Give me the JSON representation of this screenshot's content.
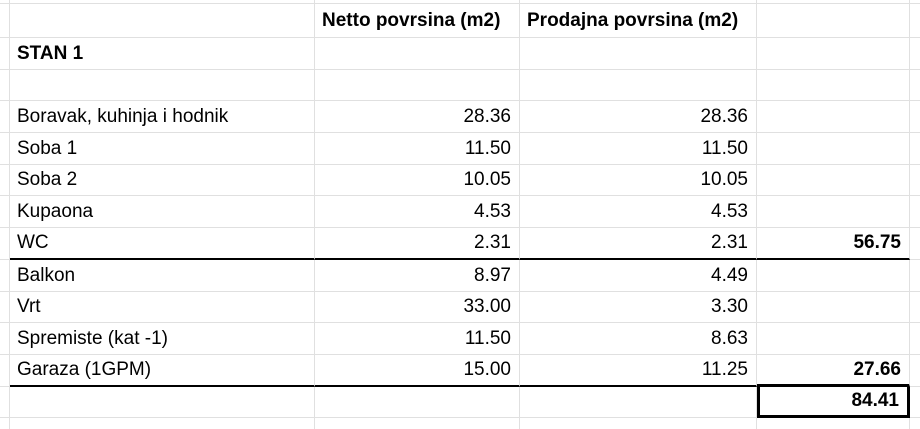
{
  "sheet": {
    "colors": {
      "gridline": "#e0e0e0",
      "strong_border": "#000000",
      "background": "#ffffff",
      "text": "#000000"
    },
    "header": {
      "netto": "Netto povrsina (m2)",
      "prodajna": "Prodajna povrsina (m2)"
    },
    "section_title": "STAN 1",
    "rows": [
      {
        "label": "Boravak, kuhinja i hodnik",
        "netto": "28.36",
        "prodajna": "28.36",
        "total": ""
      },
      {
        "label": "Soba 1",
        "netto": "11.50",
        "prodajna": "11.50",
        "total": ""
      },
      {
        "label": "Soba 2",
        "netto": "10.05",
        "prodajna": "10.05",
        "total": ""
      },
      {
        "label": "Kupaona",
        "netto": "4.53",
        "prodajna": "4.53",
        "total": ""
      },
      {
        "label": "WC",
        "netto": "2.31",
        "prodajna": "2.31",
        "total": "56.75"
      },
      {
        "label": "Balkon",
        "netto": "8.97",
        "prodajna": "4.49",
        "total": ""
      },
      {
        "label": "Vrt",
        "netto": "33.00",
        "prodajna": "3.30",
        "total": ""
      },
      {
        "label": "Spremiste (kat -1)",
        "netto": "11.50",
        "prodajna": "8.63",
        "total": ""
      },
      {
        "label": "Garaza (1GPM)",
        "netto": "15.00",
        "prodajna": "11.25",
        "total": "27.66"
      }
    ],
    "subtotals": {
      "living_area": "56.75",
      "additional_area": "27.66"
    },
    "grand_total": "84.41"
  }
}
